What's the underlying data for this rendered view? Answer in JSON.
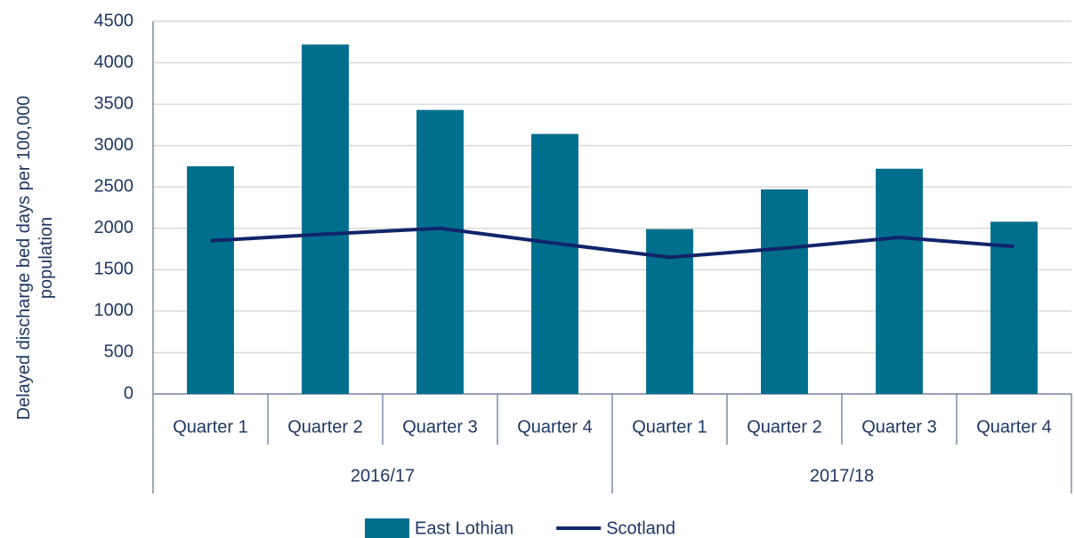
{
  "chart_data": {
    "type": "bar-line",
    "y_label": "Delayed discharge bed days per 100,000 population",
    "groups": [
      {
        "label": "2016/17",
        "categories": [
          "Quarter 1",
          "Quarter 2",
          "Quarter 3",
          "Quarter 4"
        ]
      },
      {
        "label": "2017/18",
        "categories": [
          "Quarter 1",
          "Quarter 2",
          "Quarter 3",
          "Quarter 4"
        ]
      }
    ],
    "series": [
      {
        "name": "East Lothian",
        "type": "bar",
        "color": "#006f8e",
        "values": [
          2750,
          4220,
          3430,
          3140,
          1990,
          2470,
          2720,
          2080
        ]
      },
      {
        "name": "Scotland",
        "type": "line",
        "color": "#12246a",
        "values": [
          1850,
          1930,
          2000,
          1820,
          1650,
          1760,
          1890,
          1780
        ]
      }
    ],
    "ylim": [
      0,
      4500
    ],
    "yticks": [
      0,
      500,
      1000,
      1500,
      2000,
      2500,
      3000,
      3500,
      4000,
      4500
    ],
    "grid": true,
    "legend": "bottom"
  }
}
